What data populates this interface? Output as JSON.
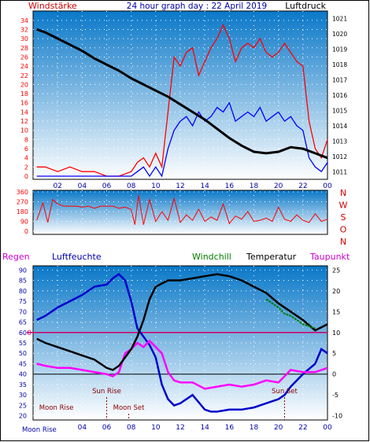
{
  "header": {
    "title": "24 hour graph day : 22 April 2019",
    "left_label": "Windstärke",
    "right_label": "Luftdruck"
  },
  "bottom_header": {
    "regen": "Regen",
    "luftfeuchte": "Luftfeuchte",
    "windchill": "Windchill",
    "temperatur": "Temperatur",
    "taupunkt": "Taupunkt"
  },
  "colors": {
    "wind": "#ff0000",
    "gust_blue": "#0000ff",
    "pressure": "#000000",
    "temperature": "#000000",
    "windchill": "#008000",
    "dewpoint": "#ff00ff",
    "humidity": "#0000cc",
    "bg_top": "#0a78c8",
    "bg_bottom": "#ffffff",
    "hour_label": "#0000aa",
    "zero_line": "#cc0066",
    "sun_label": "#8b0000"
  },
  "chart_data": [
    {
      "type": "line",
      "name": "wind-pressure",
      "x_ticks": [
        "02",
        "04",
        "06",
        "08",
        "10",
        "12",
        "14",
        "16",
        "18",
        "20",
        "22",
        "00"
      ],
      "y_left_ticks": [
        "0",
        "2",
        "4",
        "6",
        "8",
        "10",
        "12",
        "14",
        "16",
        "18",
        "20",
        "22",
        "24",
        "26",
        "28",
        "30",
        "32",
        "34"
      ],
      "y_right_ticks": [
        "1011",
        "1012",
        "1013",
        "1014",
        "1015",
        "1016",
        "1017",
        "1018",
        "1019",
        "1020",
        "1021"
      ],
      "ylim_left": [
        0,
        35
      ],
      "ylim_right": [
        1010.5,
        1021.5
      ],
      "pressure": {
        "x": [
          0.3,
          1,
          2,
          3,
          4,
          5,
          6,
          7,
          8,
          9,
          10,
          11,
          12,
          13,
          14,
          15,
          16,
          17,
          18,
          19,
          20,
          21,
          22,
          23,
          24
        ],
        "y": [
          1020.3,
          1020.1,
          1019.7,
          1019.3,
          1018.9,
          1018.4,
          1018.0,
          1017.6,
          1017.1,
          1016.7,
          1016.3,
          1015.9,
          1015.4,
          1014.9,
          1014.4,
          1013.8,
          1013.2,
          1012.7,
          1012.3,
          1012.2,
          1012.3,
          1012.6,
          1012.5,
          1012.2,
          1011.9
        ]
      },
      "gust": {
        "x": [
          0.3,
          1,
          2,
          3,
          4,
          5,
          6,
          7,
          8,
          8.5,
          9,
          9.5,
          10,
          10.5,
          11,
          11.5,
          12,
          12.5,
          13,
          13.5,
          14,
          14.5,
          15,
          15.5,
          16,
          16.5,
          17,
          17.5,
          18,
          18.5,
          19,
          19.5,
          20,
          20.5,
          21,
          21.5,
          22,
          22.5,
          23,
          23.5,
          24
        ],
        "y": [
          2,
          2,
          1,
          2,
          1,
          1,
          0,
          0,
          1,
          3,
          4,
          2,
          5,
          2,
          14,
          26,
          24,
          27,
          28,
          22,
          25,
          28,
          30,
          33,
          30,
          25,
          28,
          29,
          28,
          30,
          27,
          26,
          27,
          29,
          27,
          25,
          24,
          12,
          6,
          4,
          8
        ]
      },
      "average": {
        "x": [
          0.3,
          1,
          2,
          3,
          4,
          5,
          6,
          7,
          8,
          8.5,
          9,
          9.5,
          10,
          10.5,
          11,
          11.5,
          12,
          12.5,
          13,
          13.5,
          14,
          14.5,
          15,
          15.5,
          16,
          16.5,
          17,
          17.5,
          18,
          18.5,
          19,
          19.5,
          20,
          20.5,
          21,
          21.5,
          22,
          22.5,
          23,
          23.5,
          24
        ],
        "y": [
          0,
          0,
          0,
          0,
          0,
          0,
          0,
          0,
          0,
          1,
          2,
          0,
          2,
          0,
          6,
          10,
          12,
          13,
          11,
          14,
          12,
          13,
          15,
          14,
          16,
          12,
          13,
          14,
          13,
          15,
          12,
          13,
          14,
          12,
          13,
          11,
          10,
          4,
          2,
          1,
          3
        ]
      }
    },
    {
      "type": "line",
      "name": "wind-direction",
      "y_ticks": [
        "360",
        "270",
        "180",
        "90",
        "0"
      ],
      "compass": [
        "N",
        "W",
        "S",
        "O",
        "N"
      ],
      "ylim": [
        0,
        360
      ],
      "direction": {
        "x": [
          0.3,
          0.8,
          1.2,
          1.6,
          2,
          2.5,
          3,
          3.5,
          4,
          4.5,
          5,
          5.5,
          6,
          6.5,
          7,
          7.5,
          8,
          8.3,
          8.6,
          9,
          9.5,
          10,
          10.5,
          11,
          11.5,
          12,
          12.5,
          13,
          13.5,
          14,
          14.5,
          15,
          15.5,
          16,
          16.5,
          17,
          17.5,
          18,
          18.5,
          19,
          19.5,
          20,
          20.5,
          21,
          21.5,
          22,
          22.5,
          23,
          23.5,
          24
        ],
        "y": [
          100,
          260,
          80,
          290,
          250,
          230,
          230,
          230,
          220,
          230,
          210,
          230,
          230,
          230,
          210,
          220,
          200,
          60,
          330,
          60,
          290,
          90,
          180,
          100,
          300,
          80,
          150,
          100,
          200,
          90,
          130,
          100,
          250,
          70,
          140,
          110,
          180,
          90,
          100,
          120,
          90,
          220,
          110,
          90,
          150,
          100,
          80,
          160,
          90,
          110
        ]
      }
    },
    {
      "type": "line",
      "name": "temp-humidity",
      "y_left_ticks": [
        "20",
        "25",
        "30",
        "35",
        "40",
        "45",
        "50",
        "55",
        "60",
        "65",
        "70",
        "75",
        "80",
        "85",
        "90"
      ],
      "y_right_ticks": [
        "-10",
        "-5",
        "0",
        "5",
        "10",
        "15",
        "20",
        "25"
      ],
      "ylim_left": [
        18,
        92
      ],
      "ylim_right": [
        -11,
        26
      ],
      "zero_label": "0",
      "temperature": {
        "x": [
          0.3,
          1,
          2,
          3,
          4,
          5,
          6,
          6.5,
          7,
          7.5,
          8,
          8.5,
          9,
          9.5,
          10,
          11,
          12,
          13,
          14,
          15,
          16,
          17,
          18,
          19,
          20,
          21,
          22,
          23,
          24
        ],
        "y": [
          8.5,
          7.5,
          6.5,
          5.5,
          4.5,
          3.5,
          1.5,
          1.0,
          2.0,
          4.0,
          6.0,
          9.0,
          13.0,
          18.0,
          21.0,
          22.5,
          22.5,
          23.0,
          23.5,
          24.0,
          23.5,
          22.5,
          21.0,
          19.5,
          17.0,
          15.0,
          13.0,
          10.5,
          12.0
        ]
      },
      "windchill": {
        "x": [
          19,
          19.5,
          20,
          20.5,
          21,
          21.5,
          22,
          22.5,
          23
        ],
        "y": [
          18.0,
          17.0,
          16.0,
          14.5,
          14.0,
          13.0,
          12.0,
          11.5,
          11.0
        ]
      },
      "dewpoint": {
        "x": [
          0.3,
          1,
          2,
          3,
          4,
          5,
          6,
          6.5,
          7,
          7.5,
          8,
          8.5,
          9,
          9.5,
          10,
          10.5,
          11,
          11.5,
          12,
          13,
          14,
          15,
          16,
          17,
          18,
          19,
          20,
          20.5,
          21,
          22,
          23,
          24
        ],
        "y": [
          2.5,
          2.0,
          1.5,
          1.5,
          1.0,
          0.5,
          0,
          -0.5,
          0.5,
          5.0,
          6.0,
          7.5,
          6.5,
          8.0,
          6.5,
          5.0,
          0.5,
          -1.5,
          -2.0,
          -2.0,
          -3.5,
          -3.0,
          -2.5,
          -3.0,
          -2.5,
          -1.5,
          -2.0,
          -0.5,
          1.0,
          0.5,
          0.5,
          1.5
        ]
      },
      "humidity": {
        "x": [
          0.3,
          1,
          2,
          3,
          4,
          5,
          6,
          6.5,
          7,
          7.5,
          8,
          8.5,
          9,
          9.5,
          10,
          10.5,
          11,
          11.5,
          12,
          13,
          14,
          14.5,
          15,
          16,
          17,
          18,
          19,
          20,
          20.5,
          21,
          22,
          23,
          23.5,
          24
        ],
        "y": [
          66,
          68,
          72,
          75,
          78,
          82,
          83,
          86,
          88,
          85,
          75,
          62,
          58,
          54,
          48,
          35,
          28,
          25,
          26,
          30,
          23,
          22,
          22,
          23,
          23,
          24,
          26,
          28,
          30,
          34,
          40,
          45,
          52,
          50
        ]
      },
      "annotations": [
        {
          "text": "Moon Rise",
          "x": 0.5,
          "row": "upper"
        },
        {
          "text": "Sun Rise",
          "x": 6.0,
          "row": "middle"
        },
        {
          "text": "Moon Set",
          "x": 7.8,
          "row": "upper"
        },
        {
          "text": "Sun Set",
          "x": 20.5,
          "row": "middle"
        }
      ],
      "bottom_label": "Moon Rise"
    }
  ]
}
